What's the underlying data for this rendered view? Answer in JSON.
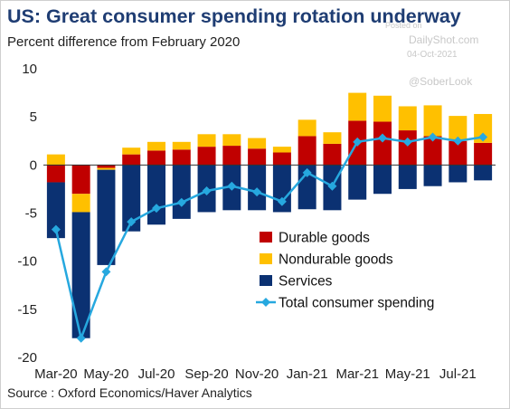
{
  "header": {
    "title": "US: Great consumer spending rotation underway",
    "subtitle": "Percent difference from February 2020"
  },
  "watermark": {
    "posted_on": "Posted on",
    "site": "DailyShot.com",
    "date": "04-Oct-2021",
    "handle": "@SoberLook"
  },
  "footer": {
    "source": "Source : Oxford Economics/Haver Analytics"
  },
  "chart_data": {
    "type": "bar",
    "stacked": true,
    "categories": [
      "Mar-20",
      "Apr-20",
      "May-20",
      "Jun-20",
      "Jul-20",
      "Aug-20",
      "Sep-20",
      "Oct-20",
      "Nov-20",
      "Dec-20",
      "Jan-21",
      "Feb-21",
      "Mar-21",
      "Apr-21",
      "May-21",
      "Jun-21",
      "Jul-21",
      "Aug-21"
    ],
    "x_tick_labels": [
      "Mar-20",
      "May-20",
      "Jul-20",
      "Sep-20",
      "Nov-20",
      "Jan-21",
      "Mar-21",
      "May-21",
      "Jul-21"
    ],
    "y_ticks": [
      10,
      5,
      0,
      -5,
      -10,
      -15,
      -20
    ],
    "ylim": [
      -20,
      10
    ],
    "series": [
      {
        "name": "Durable goods",
        "type": "bar",
        "color": "#c00000",
        "values": [
          -1.8,
          -3.0,
          -0.3,
          1.1,
          1.5,
          1.6,
          1.9,
          2.0,
          1.7,
          1.3,
          3.0,
          2.2,
          4.6,
          4.5,
          3.6,
          3.0,
          2.5,
          2.3
        ]
      },
      {
        "name": "Nondurable goods",
        "type": "bar",
        "color": "#ffc000",
        "values": [
          1.1,
          -1.9,
          -0.2,
          0.7,
          0.9,
          0.8,
          1.3,
          1.2,
          1.1,
          0.6,
          1.7,
          1.2,
          2.9,
          2.7,
          2.5,
          3.2,
          2.6,
          3.0
        ]
      },
      {
        "name": "Services",
        "type": "bar",
        "color": "#0b3172",
        "values": [
          -5.8,
          -13.1,
          -9.9,
          -6.9,
          -6.2,
          -5.6,
          -4.9,
          -4.7,
          -4.7,
          -4.9,
          -4.6,
          -4.7,
          -3.6,
          -3.0,
          -2.5,
          -2.2,
          -1.8,
          -1.6
        ]
      },
      {
        "name": "Total consumer spending",
        "type": "line",
        "color": "#26a8df",
        "values": [
          -6.7,
          -18.0,
          -11.1,
          -5.9,
          -4.5,
          -3.9,
          -2.7,
          -2.2,
          -2.8,
          -3.8,
          -0.8,
          -2.2,
          2.4,
          2.8,
          2.4,
          2.9,
          2.5,
          2.9
        ]
      }
    ],
    "legend": "bottom-right"
  }
}
